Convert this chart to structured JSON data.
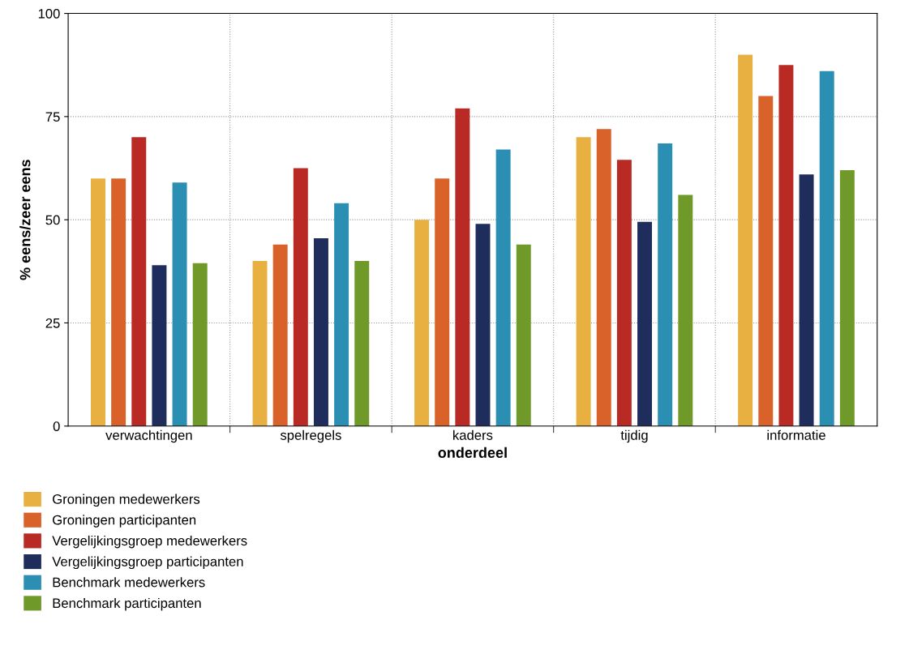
{
  "chart_data": {
    "type": "bar",
    "xlabel": "onderdeel",
    "ylabel": "% eens/zeer eens",
    "categories": [
      "verwachtingen",
      "spelregels",
      "kaders",
      "tijdig",
      "informatie"
    ],
    "series": [
      {
        "name": "Groningen medewerkers",
        "color": "#e8b040",
        "values": [
          60,
          40,
          50,
          70,
          90
        ]
      },
      {
        "name": "Groningen participanten",
        "color": "#d9622b",
        "values": [
          60,
          44,
          60,
          72,
          80
        ]
      },
      {
        "name": "Vergelijkingsgroep medewerkers",
        "color": "#b82a23",
        "values": [
          70,
          62.5,
          77,
          64.5,
          87.5
        ]
      },
      {
        "name": "Vergelijkingsgroep participanten",
        "color": "#1f2d5c",
        "values": [
          39,
          45.5,
          49,
          49.5,
          61
        ]
      },
      {
        "name": "Benchmark medewerkers",
        "color": "#2a8fb3",
        "values": [
          59,
          54,
          67,
          68.5,
          86
        ]
      },
      {
        "name": "Benchmark participanten",
        "color": "#6f9a2a",
        "values": [
          39.5,
          40,
          44,
          56,
          62
        ]
      }
    ],
    "ylim": [
      0,
      100
    ],
    "yticks": [
      0,
      25,
      50,
      75,
      100
    ],
    "grid": true,
    "legend": "bottom"
  }
}
